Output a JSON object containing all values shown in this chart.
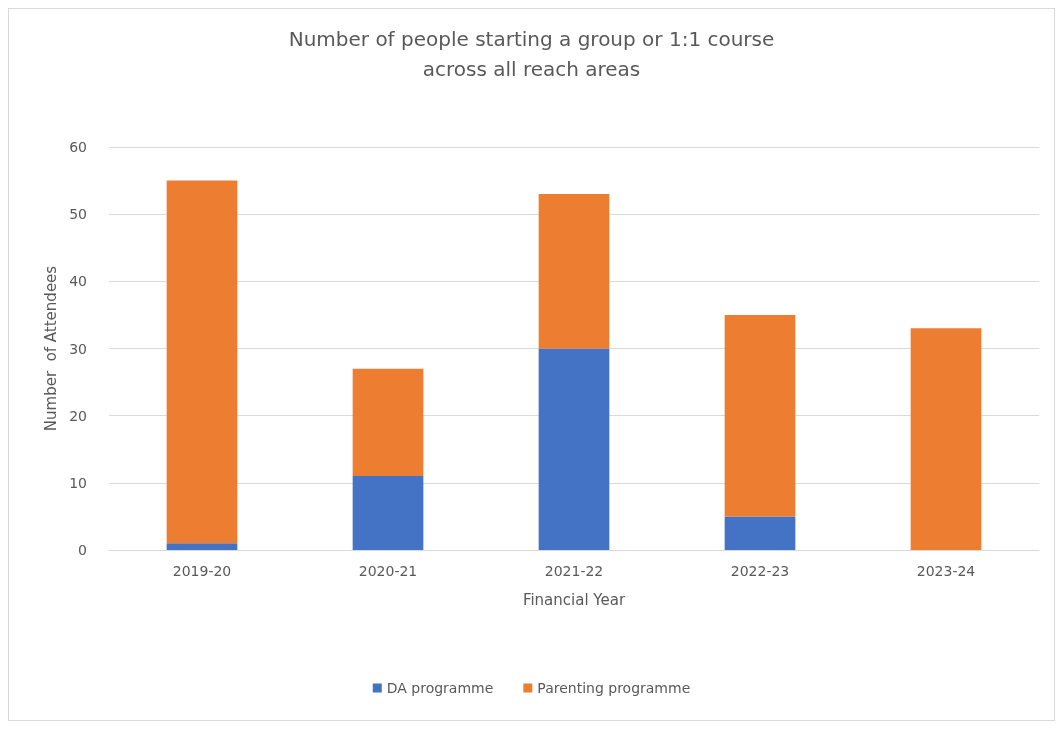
{
  "chart_data": {
    "type": "bar",
    "title": "Number of people starting a group or 1:1 course\nacross all reach areas",
    "xlabel": "Financial Year",
    "ylabel": "Number  of Attendees",
    "categories": [
      "2019-20",
      "2020-21",
      "2021-22",
      "2022-23",
      "2023-24"
    ],
    "series": [
      {
        "name": "DA programme",
        "color": "#4472c4",
        "values": [
          1,
          11,
          30,
          5,
          0
        ]
      },
      {
        "name": "Parenting programme",
        "color": "#ed7d31",
        "values": [
          54,
          16,
          23,
          30,
          33
        ]
      }
    ],
    "stacked": true,
    "ylim": [
      0,
      60
    ],
    "yticks": [
      0,
      10,
      20,
      30,
      40,
      50,
      60
    ],
    "grid": "y",
    "legend": "bottom"
  }
}
